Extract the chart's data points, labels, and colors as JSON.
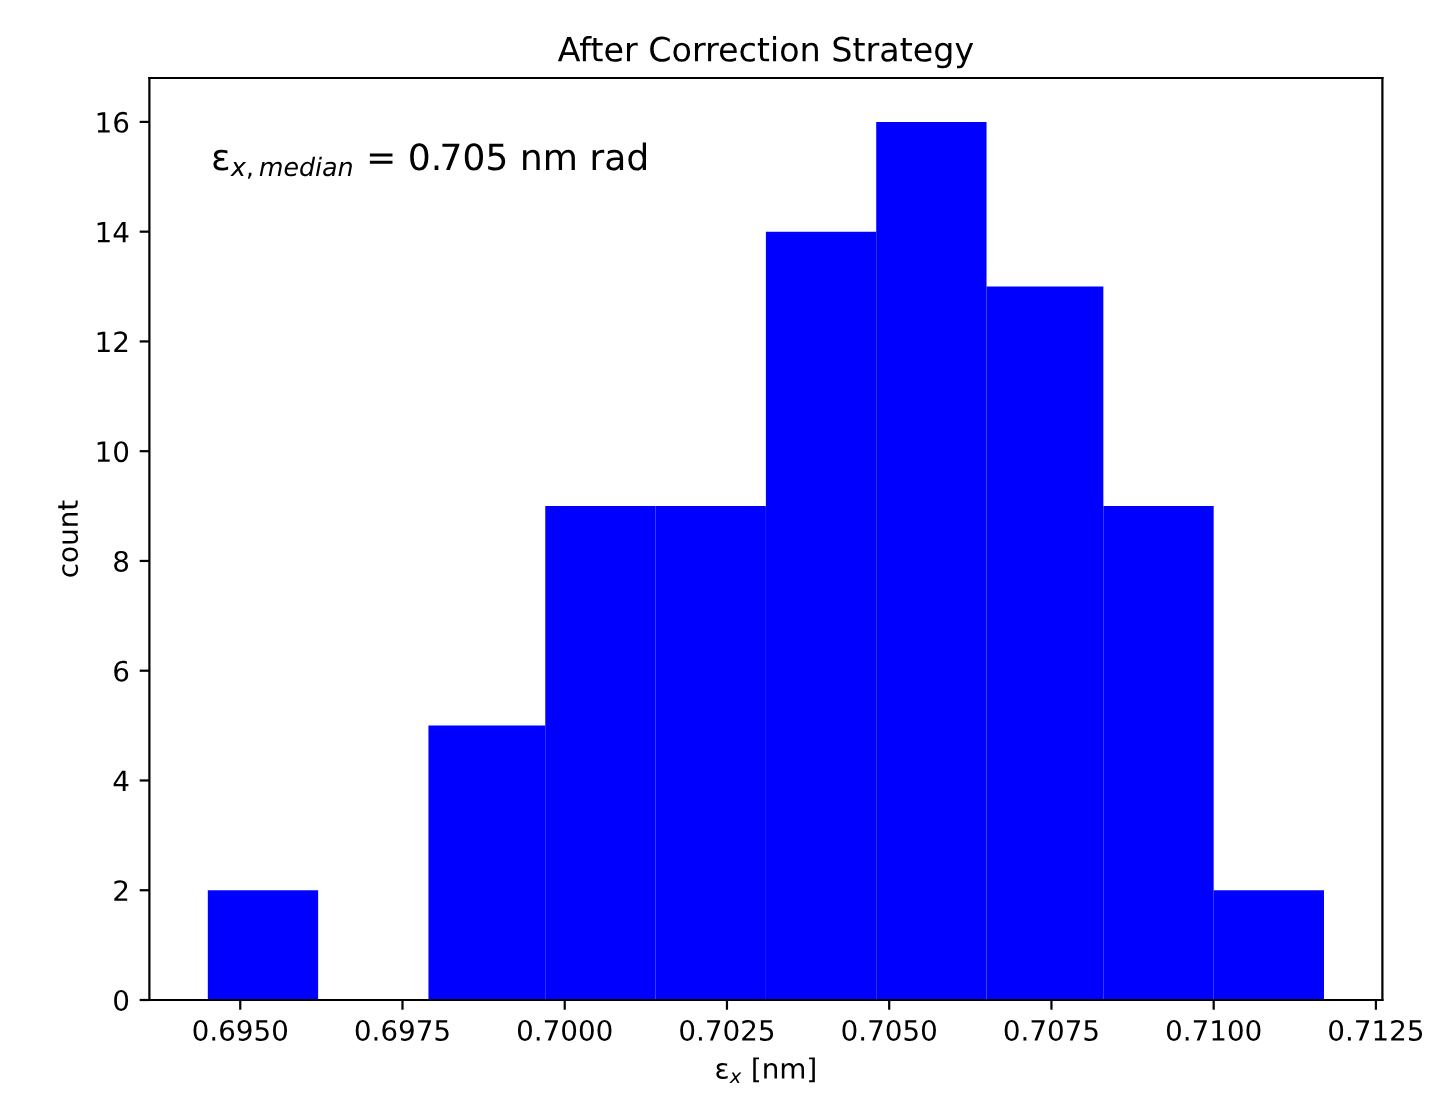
{
  "chart_data": {
    "type": "histogram",
    "title": "After Correction Strategy",
    "xlabel": "ε$_{x}$ [nm]",
    "ylabel": "count",
    "bins": [
      0.6945,
      0.6962,
      0.6979,
      0.6997,
      0.7014,
      0.7031,
      0.7048,
      0.7065,
      0.7083,
      0.71,
      0.7117
    ],
    "values": [
      2,
      0,
      5,
      9,
      9,
      14,
      16,
      13,
      9,
      2
    ],
    "color": "#0000ff",
    "xlim": [
      0.6936,
      0.7126
    ],
    "xticks": [
      {
        "value": 0.695,
        "label": "0.6950"
      },
      {
        "value": 0.6975,
        "label": "0.6975"
      },
      {
        "value": 0.7,
        "label": "0.7000"
      },
      {
        "value": 0.7025,
        "label": "0.7025"
      },
      {
        "value": 0.705,
        "label": "0.7050"
      },
      {
        "value": 0.7075,
        "label": "0.7075"
      },
      {
        "value": 0.71,
        "label": "0.7100"
      },
      {
        "value": 0.7125,
        "label": "0.7125"
      }
    ],
    "ylim": [
      0,
      16.8
    ],
    "yticks": [
      0,
      2,
      4,
      6,
      8,
      10,
      12,
      14,
      16
    ],
    "annotations": [
      "ε$_{x,median}$ = 0.705 nm rad"
    ]
  }
}
